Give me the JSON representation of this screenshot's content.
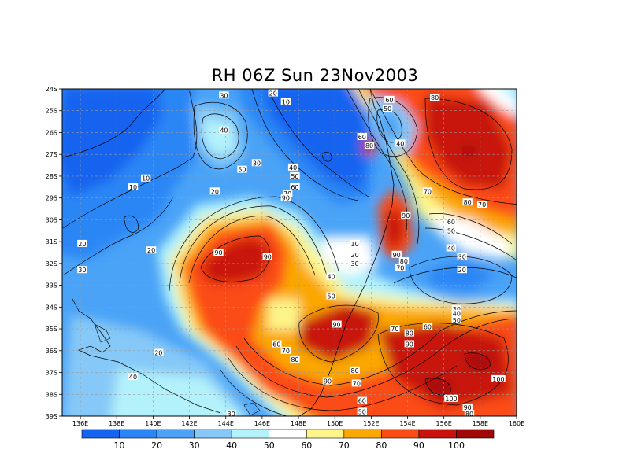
{
  "title": "RH 06Z Sun 23Nov2003",
  "lat_ticks": [
    "24S",
    "25S",
    "26S",
    "27S",
    "28S",
    "29S",
    "30S",
    "31S",
    "32S",
    "33S",
    "34S",
    "35S",
    "36S",
    "37S",
    "38S",
    "39S"
  ],
  "lon_ticks": [
    "136E",
    "138E",
    "140E",
    "142E",
    "144E",
    "146E",
    "148E",
    "150E",
    "152E",
    "154E",
    "156E",
    "158E",
    "160E"
  ],
  "colorbar": {
    "labels": [
      "10",
      "20",
      "30",
      "40",
      "50",
      "60",
      "70",
      "80",
      "90",
      "100"
    ],
    "colors": [
      "#1464f0",
      "#2b86f5",
      "#4aa3f7",
      "#86c9f8",
      "#b4f2fb",
      "#ffffff",
      "#fdf58a",
      "#fba704",
      "#fb4b14",
      "#c8120e",
      "#a00808"
    ]
  },
  "contour_labels": [
    {
      "text": "30",
      "lon": 143.9,
      "lat": 24.3
    },
    {
      "text": "20",
      "lon": 146.6,
      "lat": 24.2
    },
    {
      "text": "10",
      "lon": 147.3,
      "lat": 24.6
    },
    {
      "text": "40",
      "lon": 143.9,
      "lat": 25.9
    },
    {
      "text": "50",
      "lon": 144.9,
      "lat": 27.7
    },
    {
      "text": "30",
      "lon": 145.7,
      "lat": 27.4
    },
    {
      "text": "20",
      "lon": 143.4,
      "lat": 28.7
    },
    {
      "text": "10",
      "lon": 138.9,
      "lat": 28.5
    },
    {
      "text": "10",
      "lon": 139.6,
      "lat": 28.1
    },
    {
      "text": "20",
      "lon": 136.1,
      "lat": 31.1
    },
    {
      "text": "20",
      "lon": 139.9,
      "lat": 31.4
    },
    {
      "text": "30",
      "lon": 136.1,
      "lat": 32.3
    },
    {
      "text": "40",
      "lon": 147.7,
      "lat": 27.6
    },
    {
      "text": "50",
      "lon": 147.8,
      "lat": 28.0
    },
    {
      "text": "60",
      "lon": 147.8,
      "lat": 28.5
    },
    {
      "text": "70",
      "lon": 147.4,
      "lat": 28.8
    },
    {
      "text": "90",
      "lon": 147.3,
      "lat": 29.0
    },
    {
      "text": "90",
      "lon": 143.6,
      "lat": 31.5
    },
    {
      "text": "90",
      "lon": 146.3,
      "lat": 31.7
    },
    {
      "text": "60",
      "lon": 153.0,
      "lat": 24.5
    },
    {
      "text": "50",
      "lon": 152.9,
      "lat": 24.9
    },
    {
      "text": "80",
      "lon": 155.5,
      "lat": 24.4
    },
    {
      "text": "60",
      "lon": 151.5,
      "lat": 26.2
    },
    {
      "text": "80",
      "lon": 151.9,
      "lat": 26.6
    },
    {
      "text": "40",
      "lon": 153.6,
      "lat": 26.5
    },
    {
      "text": "70",
      "lon": 155.1,
      "lat": 28.7
    },
    {
      "text": "80",
      "lon": 157.3,
      "lat": 29.2
    },
    {
      "text": "70",
      "lon": 158.1,
      "lat": 29.3
    },
    {
      "text": "90",
      "lon": 153.9,
      "lat": 29.8
    },
    {
      "text": "60",
      "lon": 156.4,
      "lat": 30.1
    },
    {
      "text": "50",
      "lon": 156.4,
      "lat": 30.5
    },
    {
      "text": "40",
      "lon": 156.4,
      "lat": 31.3
    },
    {
      "text": "30",
      "lon": 157.0,
      "lat": 31.7
    },
    {
      "text": "20",
      "lon": 157.0,
      "lat": 32.3
    },
    {
      "text": "10",
      "lon": 151.1,
      "lat": 31.1
    },
    {
      "text": "20",
      "lon": 151.1,
      "lat": 31.6
    },
    {
      "text": "30",
      "lon": 151.1,
      "lat": 32.0
    },
    {
      "text": "90",
      "lon": 153.4,
      "lat": 31.6
    },
    {
      "text": "80",
      "lon": 153.8,
      "lat": 31.9
    },
    {
      "text": "70",
      "lon": 153.6,
      "lat": 32.2
    },
    {
      "text": "40",
      "lon": 149.8,
      "lat": 32.6
    },
    {
      "text": "50",
      "lon": 149.8,
      "lat": 33.5
    },
    {
      "text": "90",
      "lon": 150.1,
      "lat": 34.8
    },
    {
      "text": "70",
      "lon": 153.3,
      "lat": 35.0
    },
    {
      "text": "80",
      "lon": 154.1,
      "lat": 35.2
    },
    {
      "text": "60",
      "lon": 155.1,
      "lat": 34.9
    },
    {
      "text": "30",
      "lon": 156.7,
      "lat": 34.1
    },
    {
      "text": "40",
      "lon": 156.7,
      "lat": 34.3
    },
    {
      "text": "50",
      "lon": 156.7,
      "lat": 34.6
    },
    {
      "text": "90",
      "lon": 154.1,
      "lat": 35.7
    },
    {
      "text": "60",
      "lon": 146.8,
      "lat": 35.7
    },
    {
      "text": "70",
      "lon": 147.3,
      "lat": 36.0
    },
    {
      "text": "80",
      "lon": 147.8,
      "lat": 36.4
    },
    {
      "text": "90",
      "lon": 149.6,
      "lat": 37.4
    },
    {
      "text": "80",
      "lon": 151.1,
      "lat": 36.9
    },
    {
      "text": "70",
      "lon": 151.2,
      "lat": 37.5
    },
    {
      "text": "60",
      "lon": 151.5,
      "lat": 38.3
    },
    {
      "text": "50",
      "lon": 151.5,
      "lat": 38.8
    },
    {
      "text": "100",
      "lon": 159.0,
      "lat": 37.3
    },
    {
      "text": "100",
      "lon": 156.4,
      "lat": 38.2
    },
    {
      "text": "90",
      "lon": 157.3,
      "lat": 38.6
    },
    {
      "text": "80",
      "lon": 157.4,
      "lat": 38.9
    },
    {
      "text": "20",
      "lon": 140.3,
      "lat": 36.1
    },
    {
      "text": "40",
      "lon": 138.9,
      "lat": 37.2
    },
    {
      "text": "30",
      "lon": 144.3,
      "lat": 38.9
    }
  ]
}
